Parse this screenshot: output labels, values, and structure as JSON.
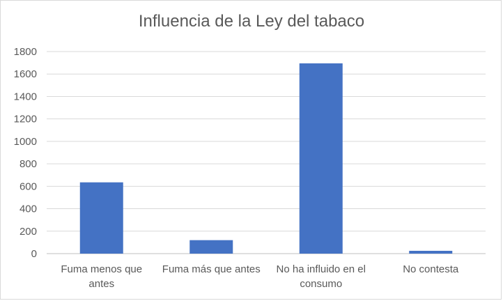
{
  "chart_data": {
    "type": "bar",
    "title": "Influencia de la Ley del tabaco",
    "categories": [
      [
        "Fuma menos que",
        "antes"
      ],
      [
        "Fuma más que antes"
      ],
      [
        "No ha influido en el",
        "consumo"
      ],
      [
        "No contesta"
      ]
    ],
    "values": [
      635,
      120,
      1695,
      25
    ],
    "ylim": [
      0,
      1800
    ],
    "yticks": [
      0,
      200,
      400,
      600,
      800,
      1000,
      1200,
      1400,
      1600,
      1800
    ],
    "grid": true,
    "bar_color": "#4472c4",
    "xlabel": "",
    "ylabel": ""
  }
}
